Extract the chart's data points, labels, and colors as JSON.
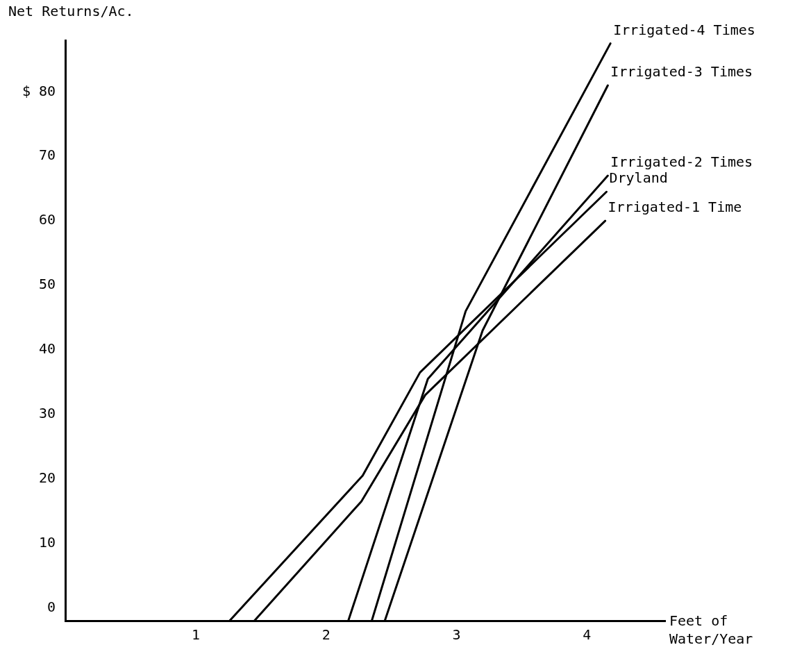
{
  "chart_data": {
    "type": "line",
    "ylabel": "Net Returns/Ac.",
    "xlabel": "Feet of Water/Year",
    "xlim": [
      0,
      4.6
    ],
    "ylim": [
      -2,
      88
    ],
    "xticks": [
      1,
      2,
      3,
      4
    ],
    "yticks": [
      0,
      10,
      20,
      30,
      40,
      50,
      60,
      {
        "value": 70,
        "label": "70"
      },
      {
        "value": 80,
        "label": "$ 80"
      }
    ],
    "grid": false,
    "legend": false,
    "marker": "none",
    "line_style": "solid",
    "series": [
      {
        "name": "Irrigated-4 Times",
        "color": "#000000",
        "x": [
          2.35,
          3.07,
          4.18
        ],
        "values": [
          -2,
          46,
          87.5
        ]
      },
      {
        "name": "Irrigated-3 Times",
        "color": "#000000",
        "x": [
          2.45,
          3.2,
          4.16
        ],
        "values": [
          -2,
          43,
          81
        ]
      },
      {
        "name": "Irrigated-2 Times",
        "color": "#000000",
        "x": [
          2.17,
          2.78,
          4.16
        ],
        "values": [
          -2,
          35.5,
          67
        ]
      },
      {
        "name": "Dryland",
        "color": "#000000",
        "x": [
          1.26,
          2.28,
          2.72,
          4.15
        ],
        "values": [
          -2,
          20.5,
          36.5,
          64.5
        ]
      },
      {
        "name": "Irrigated-1 Time",
        "color": "#000000",
        "x": [
          1.45,
          2.27,
          2.76,
          4.14
        ],
        "values": [
          -2,
          16.5,
          33,
          60
        ]
      }
    ]
  }
}
